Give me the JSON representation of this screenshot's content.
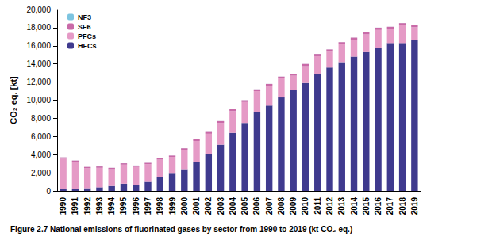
{
  "chart_data": {
    "type": "bar",
    "title": "Figure 2.7 National emissions of fluorinated gases by sector from 1990 to 2019 (kt CO₂ eq.)",
    "y_label": "CO₂ eq. [kt]",
    "categories": [
      "1990",
      "1991",
      "1992",
      "1993",
      "1994",
      "1995",
      "1996",
      "1997",
      "1998",
      "1999",
      "2000",
      "2001",
      "2002",
      "2003",
      "2004",
      "2005",
      "2006",
      "2007",
      "2008",
      "2009",
      "2010",
      "2011",
      "2012",
      "2013",
      "2014",
      "2015",
      "2016",
      "2017",
      "2018",
      "2019"
    ],
    "series": [
      {
        "name": "HFCs",
        "color": "#3f3a8e",
        "values": [
          200,
          250,
          300,
          400,
          550,
          800,
          700,
          1000,
          1500,
          1900,
          2400,
          3200,
          4100,
          5100,
          6400,
          7500,
          8700,
          9400,
          10300,
          11100,
          11900,
          12900,
          13600,
          14200,
          14800,
          15300,
          15800,
          16300,
          16300,
          16600
        ]
      },
      {
        "name": "PFCs",
        "color": "#e59ac6",
        "values": [
          3350,
          2950,
          2200,
          2150,
          1850,
          2100,
          1950,
          1950,
          1950,
          1850,
          2100,
          2300,
          2200,
          2400,
          2400,
          2300,
          2300,
          2200,
          2100,
          1600,
          1850,
          1950,
          1750,
          1950,
          1850,
          1950,
          1950,
          1550,
          1950,
          1450
        ]
      },
      {
        "name": "SF6",
        "color": "#c96aa8",
        "values": [
          150,
          150,
          150,
          150,
          150,
          150,
          150,
          150,
          150,
          150,
          200,
          200,
          200,
          200,
          200,
          200,
          200,
          200,
          200,
          200,
          250,
          250,
          250,
          250,
          250,
          250,
          250,
          250,
          250,
          250
        ]
      },
      {
        "name": "NF3",
        "color": "#7cc4e0",
        "values": [
          5,
          5,
          5,
          5,
          5,
          5,
          5,
          5,
          5,
          5,
          5,
          5,
          5,
          5,
          5,
          5,
          5,
          5,
          5,
          5,
          5,
          5,
          5,
          5,
          5,
          5,
          5,
          5,
          5,
          5
        ]
      }
    ],
    "ylim": [
      0,
      20000
    ],
    "yticks": [
      0,
      {
        "value": 2000,
        "label": "2,000"
      },
      {
        "value": 4000,
        "label": "4,000"
      },
      {
        "value": 6000,
        "label": "6,000"
      },
      {
        "value": 8000,
        "label": "8,000"
      },
      {
        "value": 10000,
        "label": "10,000"
      },
      {
        "value": 12000,
        "label": "12,000"
      },
      {
        "value": 14000,
        "label": "14,000"
      },
      {
        "value": 16000,
        "label": "16,000"
      },
      {
        "value": 18000,
        "label": "18,000"
      },
      {
        "value": 20000,
        "label": "20,000"
      }
    ],
    "stacked": true,
    "legend": "top-left",
    "grid": false
  }
}
